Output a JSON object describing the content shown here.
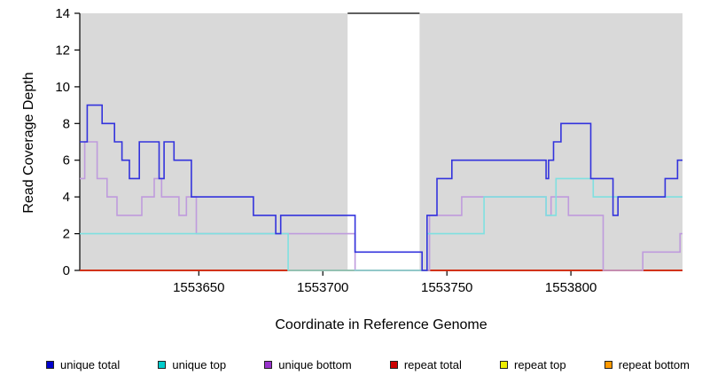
{
  "chart_data": {
    "type": "line",
    "title": "",
    "xlabel": "Coordinate in Reference Genome",
    "ylabel": "Read Coverage Depth",
    "xlim": [
      1553602,
      1553845
    ],
    "ylim": [
      0,
      14
    ],
    "yticks": [
      0,
      2,
      4,
      6,
      8,
      10,
      12,
      14
    ],
    "xticks": [
      1553650,
      1553700,
      1553750,
      1553800
    ],
    "grid": "off",
    "legend_position": "bottom",
    "shaded_region_color": "#d9d9d9",
    "shaded_regions": [
      {
        "x0": 1553602,
        "x1": 1553710
      },
      {
        "x0": 1553739,
        "x1": 1553845
      }
    ],
    "gap_top_line": {
      "x0": 1553710,
      "x1": 1553739,
      "y": 14
    },
    "series": [
      {
        "name": "unique total",
        "color": "#3333dd",
        "steps": [
          [
            1553602,
            7
          ],
          [
            1553605,
            9
          ],
          [
            1553611,
            8
          ],
          [
            1553616,
            7
          ],
          [
            1553619,
            6
          ],
          [
            1553622,
            5
          ],
          [
            1553626,
            7
          ],
          [
            1553634,
            5
          ],
          [
            1553636,
            7
          ],
          [
            1553640,
            6
          ],
          [
            1553647,
            4
          ],
          [
            1553670,
            4
          ],
          [
            1553672,
            3
          ],
          [
            1553681,
            2
          ],
          [
            1553683,
            3
          ],
          [
            1553711,
            3
          ],
          [
            1553713,
            1
          ],
          [
            1553738,
            1
          ],
          [
            1553740,
            0
          ],
          [
            1553742,
            3
          ],
          [
            1553746,
            5
          ],
          [
            1553752,
            6
          ],
          [
            1553789,
            6
          ],
          [
            1553790,
            5
          ],
          [
            1553791,
            6
          ],
          [
            1553793,
            7
          ],
          [
            1553796,
            8
          ],
          [
            1553806,
            8
          ],
          [
            1553808,
            5
          ],
          [
            1553817,
            3
          ],
          [
            1553819,
            4
          ],
          [
            1553838,
            5
          ],
          [
            1553843,
            6
          ]
        ]
      },
      {
        "name": "unique top",
        "color": "#7fe0e0",
        "steps": [
          [
            1553602,
            2
          ],
          [
            1553684,
            2
          ],
          [
            1553686,
            0
          ],
          [
            1553740,
            0
          ],
          [
            1553742,
            2
          ],
          [
            1553763,
            2
          ],
          [
            1553765,
            4
          ],
          [
            1553788,
            4
          ],
          [
            1553790,
            3
          ],
          [
            1553794,
            5
          ],
          [
            1553807,
            5
          ],
          [
            1553809,
            4
          ]
        ]
      },
      {
        "name": "unique bottom",
        "color": "#bf9bdd",
        "steps": [
          [
            1553602,
            5
          ],
          [
            1553604,
            7
          ],
          [
            1553609,
            5
          ],
          [
            1553613,
            4
          ],
          [
            1553617,
            3
          ],
          [
            1553627,
            4
          ],
          [
            1553632,
            5
          ],
          [
            1553635,
            4
          ],
          [
            1553642,
            3
          ],
          [
            1553645,
            4
          ],
          [
            1553649,
            2
          ],
          [
            1553711,
            2
          ],
          [
            1553713,
            0
          ],
          [
            1553741,
            0
          ],
          [
            1553743,
            3
          ],
          [
            1553756,
            4
          ],
          [
            1553788,
            4
          ],
          [
            1553790,
            3
          ],
          [
            1553792,
            4
          ],
          [
            1553799,
            3
          ],
          [
            1553811,
            3
          ],
          [
            1553813,
            0
          ],
          [
            1553827,
            0
          ],
          [
            1553829,
            1
          ],
          [
            1553842,
            1
          ],
          [
            1553844,
            2
          ]
        ]
      },
      {
        "name": "repeat total",
        "color": "#cc0000",
        "steps": [
          [
            1553602,
            0
          ]
        ]
      },
      {
        "name": "repeat top",
        "color": "#eded4f",
        "steps": [
          [
            1553602,
            0
          ]
        ]
      },
      {
        "name": "repeat bottom",
        "color": "#ff9900",
        "steps": [
          [
            1553602,
            0
          ]
        ]
      }
    ]
  },
  "legend": {
    "items": [
      {
        "label": "unique total",
        "color": "#0000cc"
      },
      {
        "label": "unique top",
        "color": "#00cccc"
      },
      {
        "label": "unique bottom",
        "color": "#9933cc"
      },
      {
        "label": "repeat total",
        "color": "#cc0000"
      },
      {
        "label": "repeat top",
        "color": "#eeee00"
      },
      {
        "label": "repeat bottom",
        "color": "#ff9900"
      }
    ]
  }
}
